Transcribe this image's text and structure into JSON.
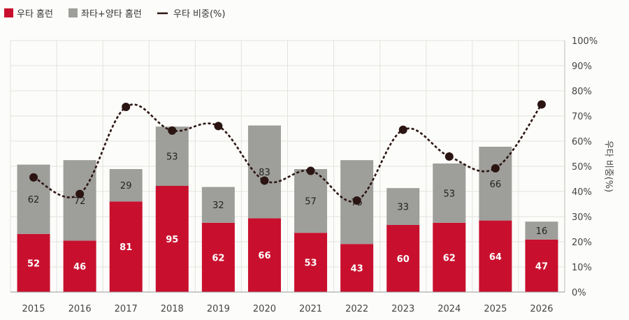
{
  "chart_data": {
    "type": "bar",
    "stacked": true,
    "categories": [
      "2015",
      "2016",
      "2017",
      "2018",
      "2019",
      "2020",
      "2021",
      "2022",
      "2023",
      "2024",
      "2025",
      "2026"
    ],
    "series": [
      {
        "name": "우타 홈런",
        "color": "#c8102e",
        "values": [
          52,
          46,
          81,
          95,
          62,
          66,
          53,
          43,
          60,
          62,
          64,
          47
        ]
      },
      {
        "name": "좌타+양타 홈런",
        "color": "#9e9e9a",
        "values": [
          62,
          72,
          29,
          53,
          32,
          83,
          57,
          75,
          33,
          53,
          66,
          16
        ]
      }
    ],
    "line_series": {
      "name": "우타 비중(%)",
      "color": "#2b1512",
      "values": [
        45.6,
        39.0,
        73.6,
        64.2,
        66.0,
        44.3,
        48.2,
        36.4,
        64.5,
        53.9,
        49.2,
        74.6
      ]
    },
    "y_left": {
      "min": 0,
      "max": 225
    },
    "y_right": {
      "label": "우타 비중(%)",
      "min": 0,
      "max": 100,
      "ticks": [
        "0%",
        "10%",
        "20%",
        "30%",
        "40%",
        "50%",
        "60%",
        "70%",
        "80%",
        "90%",
        "100%"
      ]
    },
    "grid": true,
    "legend_position": "top-left"
  }
}
